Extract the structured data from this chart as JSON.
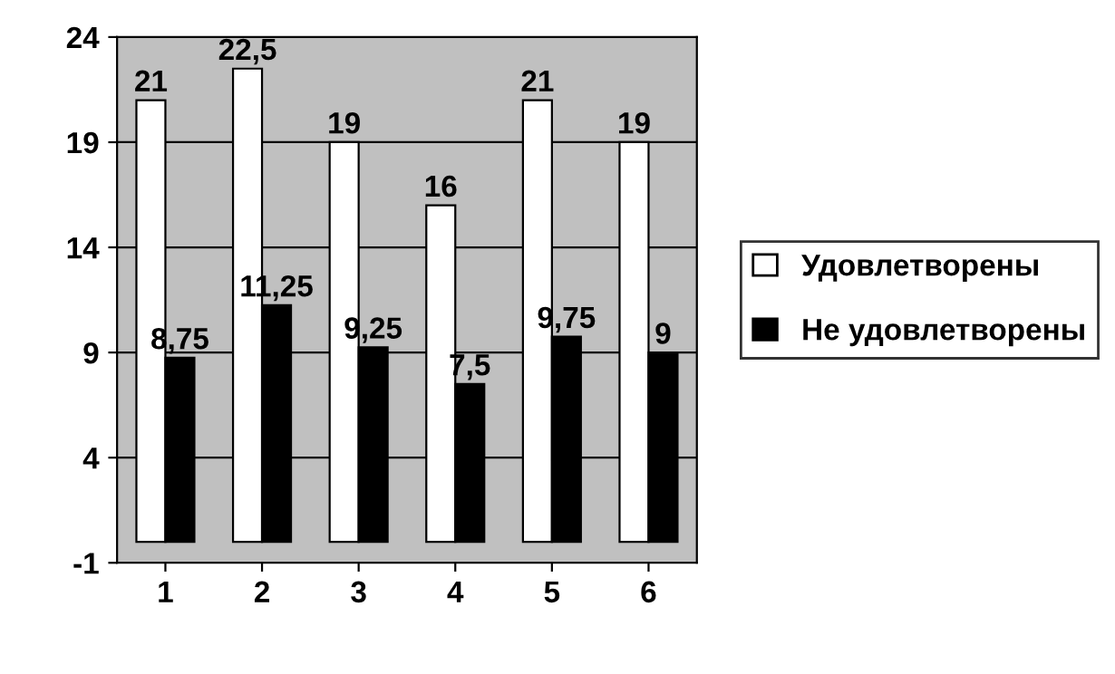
{
  "chart_data": {
    "type": "bar",
    "categories": [
      "1",
      "2",
      "3",
      "4",
      "5",
      "6"
    ],
    "series": [
      {
        "name": "Удовлетворены",
        "color": "#ffffff",
        "values": [
          21,
          22.5,
          19,
          16,
          21,
          19
        ],
        "value_labels": [
          "21",
          "22,5",
          "19",
          "16",
          "21",
          "19"
        ]
      },
      {
        "name": "Не удовлетворены",
        "color": "#000000",
        "values": [
          8.75,
          11.25,
          9.25,
          7.5,
          9.75,
          9
        ],
        "value_labels": [
          "8,75",
          "11,25",
          "9,25",
          "7,5",
          "9,75",
          "9"
        ]
      }
    ],
    "ylim": [
      -1,
      24
    ],
    "yticks": [
      -1,
      4,
      9,
      14,
      19,
      24
    ],
    "grid": "y",
    "legend": "right"
  }
}
